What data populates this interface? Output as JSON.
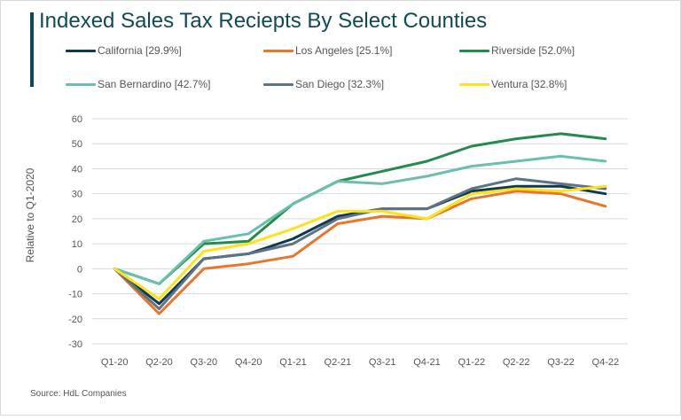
{
  "title": "Indexed Sales Tax Reciepts By Select Counties",
  "source": "Source: HdL Companies",
  "legend": [
    {
      "label": "California [29.9%]",
      "color": "#0d3b4c"
    },
    {
      "label": "Los Angeles [25.1%]",
      "color": "#e8762c"
    },
    {
      "label": "Riverside [52.0%]",
      "color": "#238b4b"
    },
    {
      "label": "San Bernardino [42.7%]",
      "color": "#6bbfae"
    },
    {
      "label": "San Diego [32.3%]",
      "color": "#5f7386"
    },
    {
      "label": "Ventura [32.8%]",
      "color": "#ffe21a"
    }
  ],
  "chart_data": {
    "type": "line",
    "title": "Indexed Sales Tax Reciepts By Select Counties",
    "xlabel": "",
    "ylabel": "Relative to Q1-2020",
    "categories": [
      "Q1-20",
      "Q2-20",
      "Q3-20",
      "Q4-20",
      "Q1-21",
      "Q2-21",
      "Q3-21",
      "Q4-21",
      "Q1-22",
      "Q2-22",
      "Q3-22",
      "Q4-22"
    ],
    "ylim": [
      -30,
      60
    ],
    "yticks": [
      -30,
      -20,
      -10,
      0,
      10,
      20,
      30,
      40,
      50,
      60
    ],
    "grid": true,
    "legend_position": "top",
    "series": [
      {
        "name": "California [29.9%]",
        "color": "#0d3b4c",
        "values": [
          0,
          -14,
          4,
          6,
          12,
          21,
          24,
          24,
          31,
          33,
          33,
          30
        ]
      },
      {
        "name": "Los Angeles [25.1%]",
        "color": "#e8762c",
        "values": [
          0,
          -18,
          0,
          2,
          5,
          18,
          21,
          20,
          28,
          31,
          30,
          25
        ]
      },
      {
        "name": "Riverside [52.0%]",
        "color": "#238b4b",
        "values": [
          0,
          -6,
          10,
          11,
          26,
          35,
          39,
          43,
          49,
          52,
          54,
          52
        ]
      },
      {
        "name": "San Bernardino [42.7%]",
        "color": "#6bbfae",
        "values": [
          0,
          -6,
          11,
          14,
          26,
          35,
          34,
          37,
          41,
          43,
          45,
          43
        ]
      },
      {
        "name": "San Diego [32.3%]",
        "color": "#5f7386",
        "values": [
          0,
          -16,
          4,
          6,
          10,
          20,
          24,
          24,
          32,
          36,
          34,
          32
        ]
      },
      {
        "name": "Ventura [32.8%]",
        "color": "#ffe21a",
        "values": [
          0,
          -12,
          7,
          10,
          16,
          23,
          23,
          20,
          30,
          32,
          31,
          33
        ]
      }
    ]
  }
}
